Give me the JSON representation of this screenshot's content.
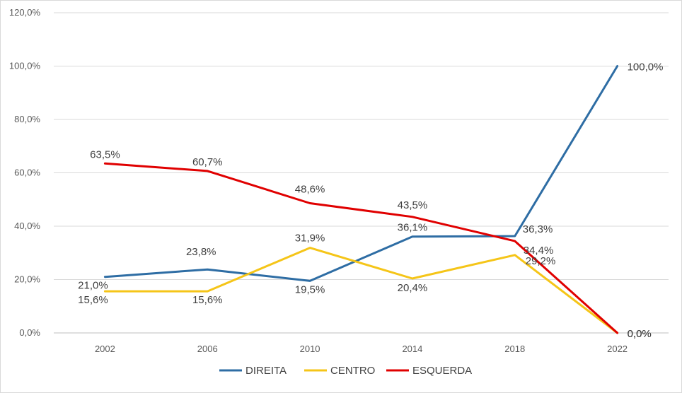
{
  "chart_data": {
    "type": "line",
    "title": "",
    "xlabel": "",
    "ylabel": "",
    "categories": [
      "2002",
      "2006",
      "2010",
      "2014",
      "2018",
      "2022"
    ],
    "ylim": [
      0,
      120
    ],
    "yticks": [
      0,
      20,
      40,
      60,
      80,
      100,
      120
    ],
    "ytick_labels": [
      "0,0%",
      "20,0%",
      "40,0%",
      "60,0%",
      "80,0%",
      "100,0%",
      "120,0%"
    ],
    "grid": true,
    "legend_position": "bottom",
    "series": [
      {
        "name": "DIREITA",
        "color": "#2e6da4",
        "values": [
          21.0,
          23.8,
          19.5,
          36.1,
          36.3,
          100.0
        ],
        "labels": [
          "21,0%",
          "23,8%",
          "19,5%",
          "36,1%",
          "36,3%",
          "100,0%"
        ]
      },
      {
        "name": "CENTRO",
        "color": "#f5c518",
        "values": [
          15.6,
          15.6,
          31.9,
          20.4,
          29.2,
          0.0
        ],
        "labels": [
          "15,6%",
          "15,6%",
          "31,9%",
          "20,4%",
          "29,2%",
          "0,0%"
        ]
      },
      {
        "name": "ESQUERDA",
        "color": "#e00000",
        "values": [
          63.5,
          60.7,
          48.6,
          43.5,
          34.4,
          0.0
        ],
        "labels": [
          "63,5%",
          "60,7%",
          "48,6%",
          "43,5%",
          "34,4%",
          "0,0%"
        ]
      }
    ]
  }
}
